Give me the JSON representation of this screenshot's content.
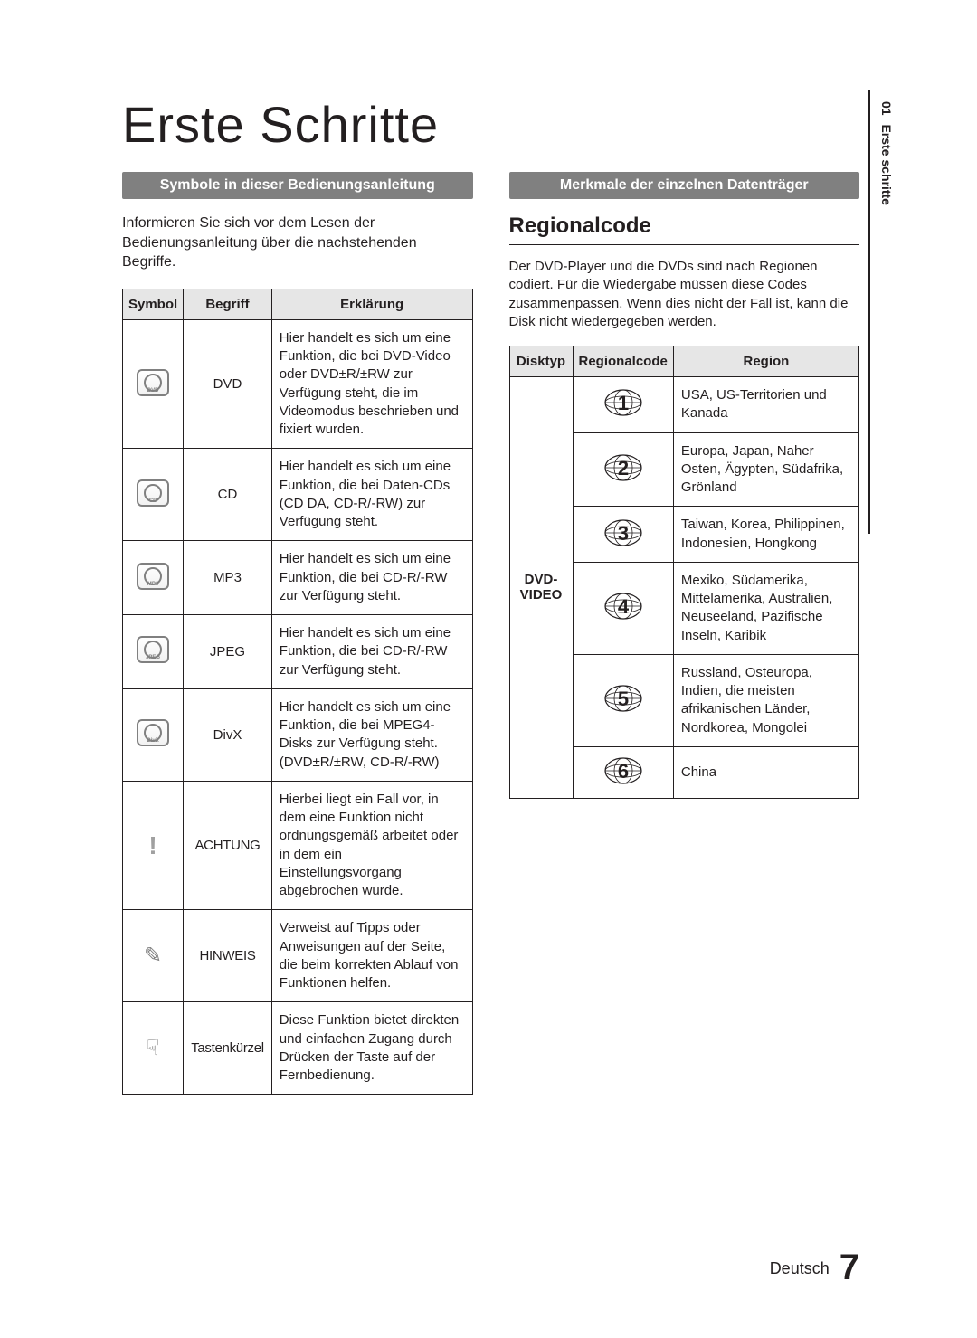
{
  "title": "Erste Schritte",
  "side_tab": {
    "num": "01",
    "label": "Erste schritte"
  },
  "left": {
    "bar": "Symbole in dieser Bedienungsanleitung",
    "intro": "Informieren Sie sich vor dem Lesen der Bedienungsanleitung über die nachstehenden Begriffe.",
    "headers": {
      "c1": "Symbol",
      "c2": "Begriff",
      "c3": "Erklärung"
    },
    "rows": [
      {
        "icon": "disc",
        "icon_label": "DVD",
        "term": "DVD",
        "term_class": "",
        "expl": "Hier handelt es sich um eine Funktion, die bei DVD-Video oder DVD±R/±RW zur Verfügung steht, die im Videomodus beschrieben und fixiert wurden."
      },
      {
        "icon": "disc",
        "icon_label": "CD",
        "term": "CD",
        "term_class": "",
        "expl": "Hier handelt es sich um eine Funktion, die bei Daten-CDs (CD DA, CD-R/-RW) zur Verfügung steht."
      },
      {
        "icon": "disc",
        "icon_label": "MP3",
        "term": "MP3",
        "term_class": "",
        "expl": "Hier handelt es sich um eine Funktion, die bei CD-R/-RW zur Verfügung steht."
      },
      {
        "icon": "disc",
        "icon_label": "JPEG",
        "term": "JPEG",
        "term_class": "",
        "expl": "Hier handelt es sich um eine Funktion, die bei CD-R/-RW zur Verfügung steht."
      },
      {
        "icon": "disc",
        "icon_label": "DivX",
        "term": "DivX",
        "term_class": "",
        "expl": "Hier handelt es sich um eine Funktion, die bei MPEG4-Disks zur Verfügung steht. (DVD±R/±RW, CD-R/-RW)"
      },
      {
        "icon": "warn",
        "icon_label": "",
        "term": "ACHTUNG",
        "term_class": "cond",
        "expl": "Hierbei liegt ein Fall vor, in dem eine Funktion nicht ordnungsgemäß arbeitet oder in dem ein Einstellungsvorgang abgebrochen wurde."
      },
      {
        "icon": "note",
        "icon_label": "",
        "term": "HINWEIS",
        "term_class": "cond",
        "expl": "Verweist auf Tipps oder Anweisungen auf der Seite, die beim korrekten Ablauf von Funktionen helfen."
      },
      {
        "icon": "shortcut",
        "icon_label": "",
        "term": "Tastenkürzel",
        "term_class": "cond",
        "expl": "Diese Funktion bietet direkten und einfachen Zugang durch Drücken der Taste auf der Fernbedienung."
      }
    ]
  },
  "right": {
    "bar": "Merkmale der einzelnen Datenträger",
    "h2": "Regionalcode",
    "para": "Der DVD-Player und die DVDs sind nach Regionen codiert. Für die Wiedergabe müssen diese Codes zusammenpassen. Wenn dies nicht der Fall ist, kann die Disk nicht wiedergegeben werden.",
    "headers": {
      "c1": "Disktyp",
      "c2": "Regionalcode",
      "c3": "Region"
    },
    "disktype": "DVD-VIDEO",
    "rows": [
      {
        "num": "1",
        "region": "USA, US-Territorien und Kanada"
      },
      {
        "num": "2",
        "region": "Europa, Japan, Naher Osten, Ägypten, Südafrika, Grönland"
      },
      {
        "num": "3",
        "region": "Taiwan, Korea, Philippinen, Indonesien, Hongkong"
      },
      {
        "num": "4",
        "region": "Mexiko, Südamerika, Mittelamerika, Australien, Neuseeland, Pazifische Inseln, Karibik"
      },
      {
        "num": "5",
        "region": "Russland, Osteuropa, Indien, die meisten afrikanischen Länder, Nordkorea, Mongolei"
      },
      {
        "num": "6",
        "region": "China"
      }
    ]
  },
  "footer": {
    "lang": "Deutsch",
    "page": "7"
  },
  "colors": {
    "bar_bg": "#808080",
    "bar_fg": "#ffffff",
    "header_bg": "#e6e6e6",
    "border": "#231f20",
    "text": "#231f20",
    "icon_gray": "#808080"
  },
  "font_sizes_pt": {
    "title": 42,
    "bar": 12,
    "body": 11,
    "h2": 18,
    "footer_page": 30
  }
}
